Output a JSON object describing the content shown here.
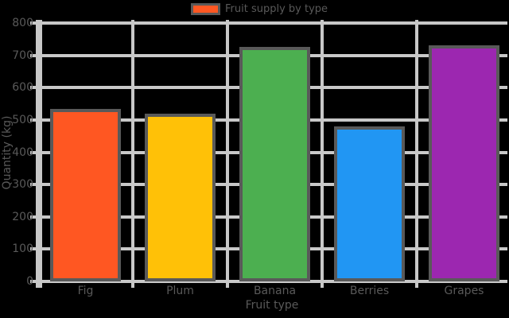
{
  "chart_data": {
    "type": "bar",
    "categories": [
      "Fig",
      "Plum",
      "Banana",
      "Berries",
      "Grapes"
    ],
    "values": [
      535,
      520,
      725,
      480,
      730
    ],
    "bar_colors": [
      "#FF5722",
      "#FFC107",
      "#4CAF50",
      "#2196F3",
      "#9C27B0"
    ],
    "title": "",
    "xlabel": "Fruit type",
    "ylabel": "Quantity (kg)",
    "ylim": [
      0,
      800
    ],
    "yticks": [
      0,
      100,
      200,
      300,
      400,
      500,
      600,
      700,
      800
    ],
    "grid": "on",
    "legend": {
      "position": "top-center",
      "entries": [
        {
          "label": "Fruit supply by type",
          "color": "#FF5722"
        }
      ]
    },
    "grid_color": "#c8c8c8",
    "text_color": "#595959",
    "edge_color": "#595959",
    "background_color": "#000000"
  }
}
